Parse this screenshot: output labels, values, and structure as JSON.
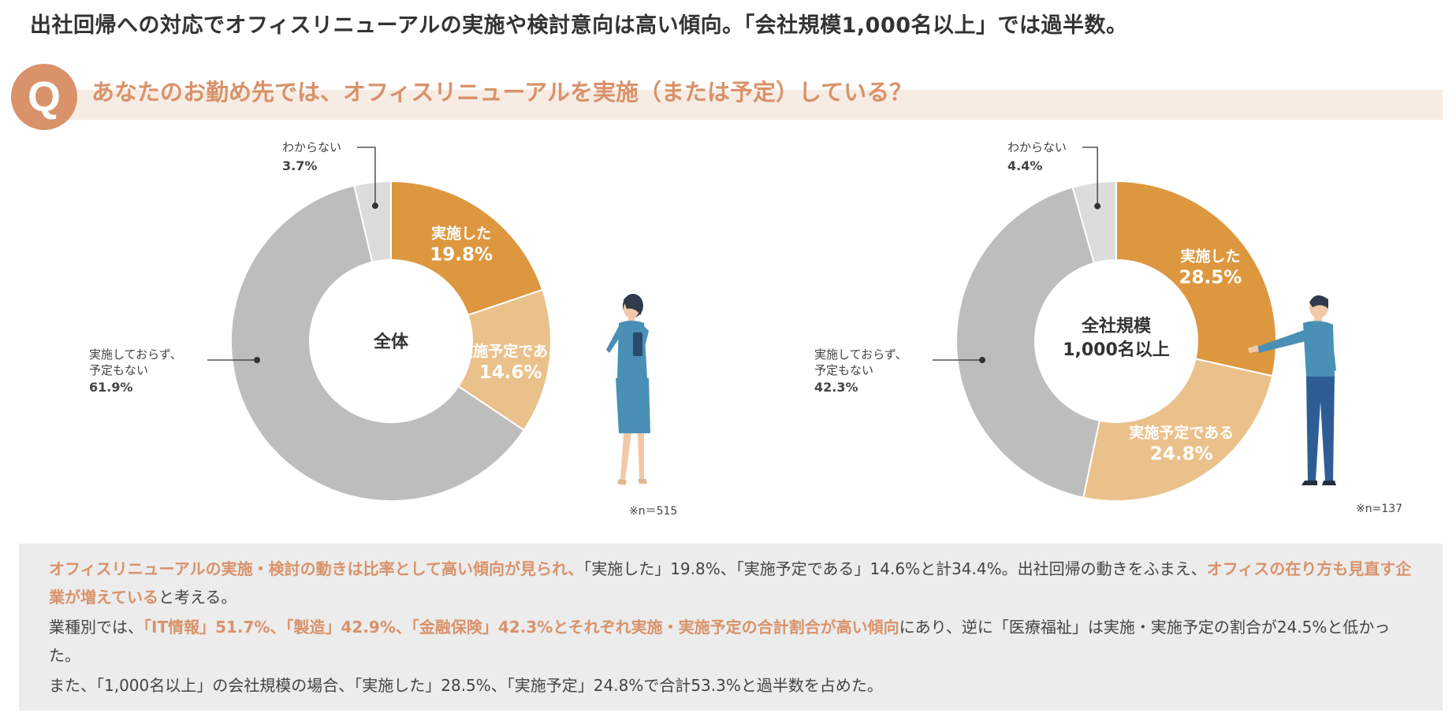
{
  "headline": "出社回帰への対応でオフィスリニューアルの実施や検討意向は高い傾向。「会社規模1,000名以上」では過半数。",
  "question": {
    "mark": "Q",
    "text": "あなたのお勤め先では、オフィスリニューアルを実施（または予定）している？"
  },
  "colors": {
    "implemented": "#dd983f",
    "planned": "#ebc18b",
    "not": "#bdbdbd",
    "unknown": "#dcdcdc",
    "accent": "#d9926a"
  },
  "chart_data": [
    {
      "type": "pie",
      "center_label": "全体",
      "note": "※n＝515",
      "categories": [
        "実施した",
        "実施予定である",
        "実施しておらず、予定もない",
        "わからない"
      ],
      "values": [
        19.8,
        14.6,
        61.9,
        3.7
      ],
      "value_labels": [
        "19.8%",
        "14.6%",
        "61.9%",
        "3.7%"
      ]
    },
    {
      "type": "pie",
      "center_label": [
        "全社規模",
        "1,000名以上"
      ],
      "note": "※n=137",
      "categories": [
        "実施した",
        "実施予定である",
        "実施しておらず、予定もない",
        "わからない"
      ],
      "values": [
        28.5,
        24.8,
        42.3,
        4.4
      ],
      "value_labels": [
        "28.5%",
        "24.8%",
        "42.3%",
        "4.4%"
      ]
    }
  ],
  "label_lines": {
    "not_line1": "実施しておらず、",
    "not_line2": "予定もない"
  },
  "summary": {
    "p1": [
      {
        "t": "オフィスリニューアルの実施・検討の動きは比率として高い傾向が見られ、",
        "h": true
      },
      {
        "t": "「実施した」19.8%、「実施予定である」14.6%と計34.4%。出社回帰の動きをふまえ、",
        "h": false
      },
      {
        "t": "オフィスの在り方も見直す企業が増えている",
        "h": true
      },
      {
        "t": "と考える。",
        "h": false
      }
    ],
    "p2": [
      {
        "t": "業種別では、",
        "h": false
      },
      {
        "t": "「IT情報」51.7%、「製造」42.9%、「金融保険」42.3%とそれぞれ実施・実施予定の合計割合が高い傾向",
        "h": true
      },
      {
        "t": "にあり、逆に「医療福祉」は実施・実施予定の割合が24.5%と低かった。",
        "h": false
      }
    ],
    "p3": [
      {
        "t": "また、「1,000名以上」の会社規模の場合、「実施した」28.5%、「実施予定」24.8%で合計53.3%と過半数を占めた。",
        "h": false
      }
    ]
  }
}
